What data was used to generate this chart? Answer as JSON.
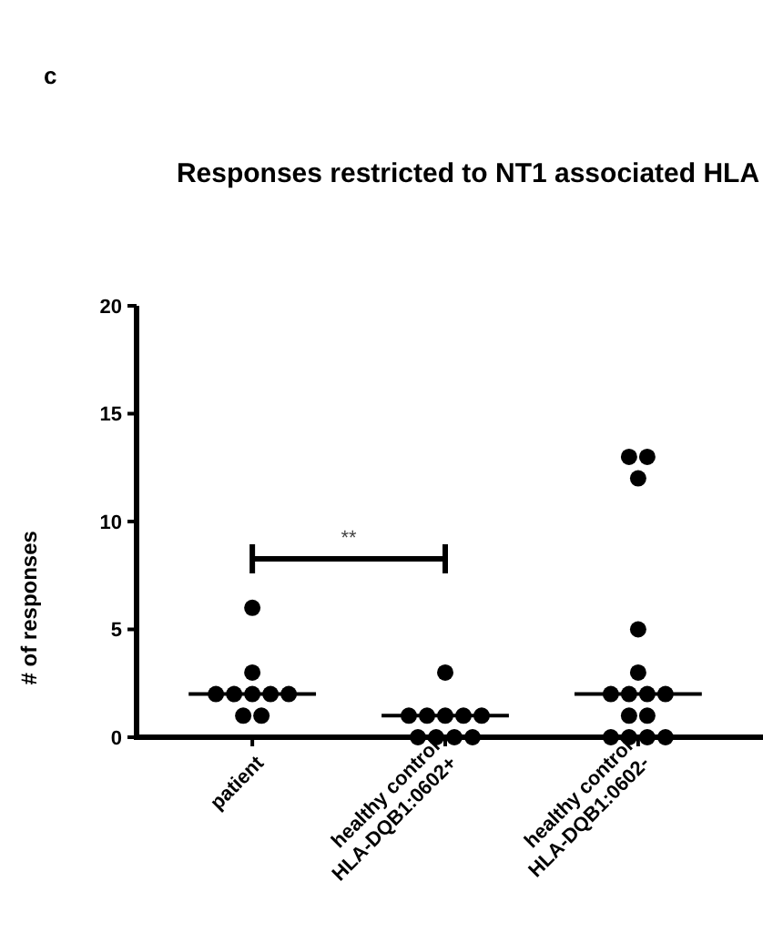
{
  "chart_data": {
    "type": "scatter",
    "title": "Responses restricted to NT1 associated HLA",
    "ylabel": "# of responses",
    "categories": [
      "patient",
      "healthy control\nHLA-DQB1:0602+",
      "healthy control\nHLA-DQB1:0602-"
    ],
    "series": [
      {
        "type": "scatter",
        "color": "#000000",
        "marker": "circle",
        "x": [
          "patient",
          "patient",
          "patient",
          "patient",
          "patient",
          "patient",
          "patient",
          "patient",
          "patient",
          "healthy control\nHLA-DQB1:0602+",
          "healthy control\nHLA-DQB1:0602+",
          "healthy control\nHLA-DQB1:0602+",
          "healthy control\nHLA-DQB1:0602+",
          "healthy control\nHLA-DQB1:0602+",
          "healthy control\nHLA-DQB1:0602+",
          "healthy control\nHLA-DQB1:0602+",
          "healthy control\nHLA-DQB1:0602+",
          "healthy control\nHLA-DQB1:0602+",
          "healthy control\nHLA-DQB1:0602+",
          "healthy control\nHLA-DQB1:0602-",
          "healthy control\nHLA-DQB1:0602-",
          "healthy control\nHLA-DQB1:0602-",
          "healthy control\nHLA-DQB1:0602-",
          "healthy control\nHLA-DQB1:0602-",
          "healthy control\nHLA-DQB1:0602-",
          "healthy control\nHLA-DQB1:0602-",
          "healthy control\nHLA-DQB1:0602-",
          "healthy control\nHLA-DQB1:0602-",
          "healthy control\nHLA-DQB1:0602-",
          "healthy control\nHLA-DQB1:0602-",
          "healthy control\nHLA-DQB1:0602-",
          "healthy control\nHLA-DQB1:0602-",
          "healthy control\nHLA-DQB1:0602-",
          "healthy control\nHLA-DQB1:0602-"
        ],
        "values": [
          6,
          3,
          2,
          2,
          2,
          2,
          2,
          1,
          1,
          3,
          1,
          1,
          1,
          1,
          1,
          0,
          0,
          0,
          0,
          13,
          13,
          12,
          5,
          3,
          2,
          2,
          2,
          2,
          1,
          1,
          0,
          0,
          0,
          0
        ]
      }
    ],
    "ylim": [
      0,
      20
    ],
    "yticks": [
      0,
      5,
      10,
      15,
      20
    ],
    "grid": false,
    "annotations": [
      "c",
      "**"
    ]
  }
}
